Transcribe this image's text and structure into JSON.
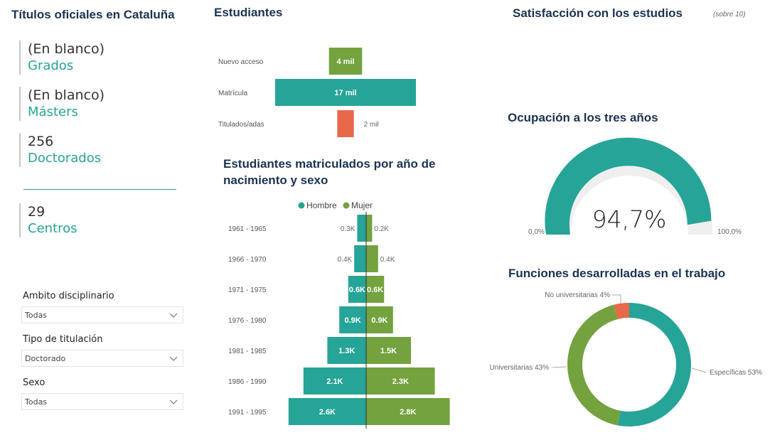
{
  "titulos": {
    "title": "Títulos oficiales en Cataluña",
    "kpis": [
      {
        "value": "(En blanco)",
        "label": "Grados"
      },
      {
        "value": "(En blanco)",
        "label": "Másters"
      },
      {
        "value": "256",
        "label": "Doctorados"
      },
      {
        "value": "29",
        "label": "Centros"
      }
    ]
  },
  "filters": [
    {
      "label": "Ambito disciplinario",
      "value": "Todas"
    },
    {
      "label": "Tipo de titulación",
      "value": "Doctorado"
    },
    {
      "label": "Sexo",
      "value": "Todas"
    }
  ],
  "colors": {
    "teal": "#26a497",
    "green": "#73a23e",
    "orange": "#e8684a",
    "navy": "#1b3351"
  },
  "estudiantes": {
    "title": "Estudiantes",
    "chart_data": {
      "type": "bar",
      "categories": [
        "Nuevo acceso",
        "Matrícula",
        "Titulados/adas"
      ],
      "values": [
        4000,
        17000,
        2000
      ],
      "labels": [
        "4 mil",
        "17 mil",
        "2 mil"
      ],
      "colors": [
        "#73a23e",
        "#26a497",
        "#e8684a"
      ]
    }
  },
  "piramide": {
    "title_line1": "Estudiantes matriculados por año de",
    "title_line2": "nacimiento y sexo",
    "chart_data": {
      "type": "bar",
      "categories": [
        "1961 - 1965",
        "1966 - 1970",
        "1971 - 1975",
        "1976 - 1980",
        "1981 - 1985",
        "1986 - 1990",
        "1991 - 1995"
      ],
      "series": [
        {
          "name": "Hombre",
          "color": "#26a497",
          "values": [
            0.3,
            0.4,
            0.6,
            0.9,
            1.3,
            2.1,
            2.6
          ],
          "labels": [
            "0.3K",
            "0.4K",
            "0.6K",
            "0.9K",
            "1.3K",
            "2.1K",
            "2.6K"
          ]
        },
        {
          "name": "Mujer",
          "color": "#73a23e",
          "values": [
            0.2,
            0.4,
            0.6,
            0.9,
            1.5,
            2.3,
            2.8
          ],
          "labels": [
            "0.2K",
            "0.4K",
            "0.6K",
            "0.9K",
            "1.5K",
            "2.3K",
            "2.8K"
          ]
        }
      ],
      "legend": "top"
    }
  },
  "satisfaccion": {
    "title": "Satisfacción con los estudios",
    "note": "(sobre 10)"
  },
  "ocupacion": {
    "title": "Ocupación a los tres años",
    "chart_data": {
      "type": "gauge",
      "value": 94.7,
      "value_label": "94,7%",
      "min_label": "0,0%",
      "max_label": "100,0%",
      "min": 0,
      "max": 100
    }
  },
  "funciones": {
    "title": "Funciones desarrolladas en el trabajo",
    "chart_data": {
      "type": "pie",
      "donut": true,
      "slices": [
        {
          "label": "Específicas 53%",
          "value": 53,
          "color": "#26a497"
        },
        {
          "label": "Universitarias 43%",
          "value": 43,
          "color": "#73a23e"
        },
        {
          "label": "No universitarias 4%",
          "value": 4,
          "color": "#e8684a"
        }
      ]
    }
  }
}
